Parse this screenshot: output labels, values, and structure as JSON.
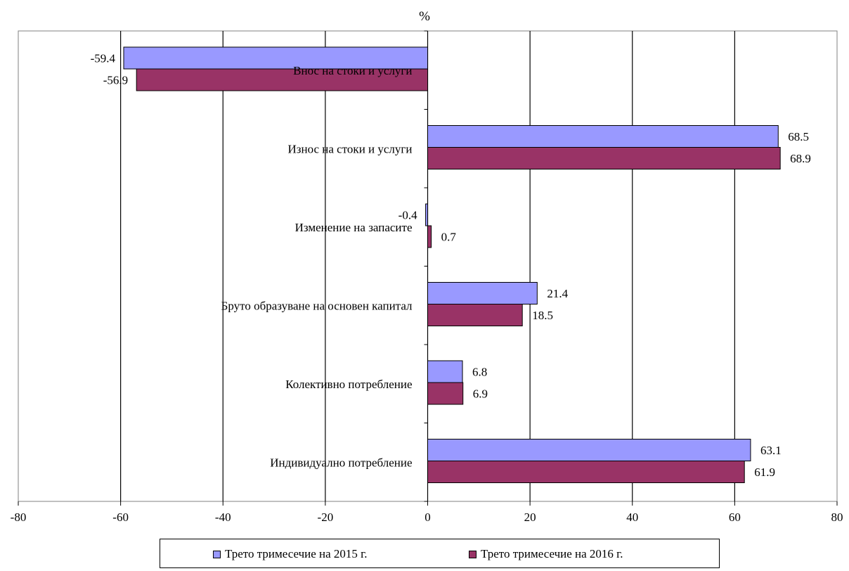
{
  "chart_data": {
    "type": "bar",
    "orientation": "horizontal",
    "unit_label": "%",
    "categories": [
      "Внос на стоки и услуги",
      "Износ на стоки и услуги",
      "Изменение  на запасите",
      "Бруто образуване на основен  капитал",
      "Колективно потребление",
      "Индивидуално потребление"
    ],
    "series": [
      {
        "name": "Трето тримесечие на 2015 г.",
        "color": "#9999ff",
        "values": [
          -59.4,
          68.5,
          -0.4,
          21.4,
          6.8,
          63.1
        ],
        "labels": [
          "-59.4",
          "68.5",
          "-0.4",
          "21.4",
          "6.8",
          "63.1"
        ]
      },
      {
        "name": "Трето тримесечие на 2016 г.",
        "color": "#993366",
        "values": [
          -56.9,
          68.9,
          0.7,
          18.5,
          6.9,
          61.9
        ],
        "labels": [
          "-56.9",
          "68.9",
          "0.7",
          "18.5",
          "6.9",
          "61.9"
        ]
      }
    ],
    "xlim": [
      -80,
      80
    ],
    "xticks": [
      -80,
      -60,
      -40,
      -20,
      0,
      20,
      40,
      60,
      80
    ],
    "xtick_labels": [
      "-80",
      "-60",
      "-40",
      "-20",
      "0",
      "20",
      "40",
      "60",
      "80"
    ],
    "grid": true,
    "legend_position": "bottom"
  }
}
